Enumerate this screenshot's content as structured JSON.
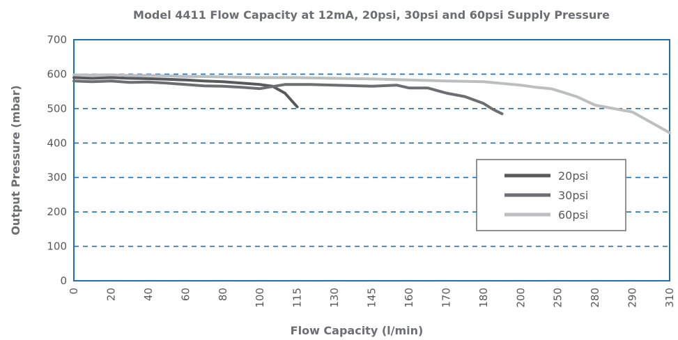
{
  "chart_data": {
    "type": "line",
    "title": "Model 4411 Flow Capacity at 12mA, 20psi, 30psi and 60psi Supply Pressure",
    "xlabel": "Flow Capacity (l/min)",
    "ylabel": "Output Pressure (mbar)",
    "ylim": [
      0,
      700
    ],
    "yticks": [
      "0",
      "100",
      "200",
      "300",
      "400",
      "500",
      "600",
      "700"
    ],
    "xticks": [
      "0",
      "20",
      "40",
      "60",
      "80",
      "100",
      "115",
      "130",
      "145",
      "160",
      "170",
      "180",
      "200",
      "250",
      "280",
      "290",
      "310"
    ],
    "grid": "horizontal dashed",
    "legend_position": "right",
    "series": [
      {
        "name": "20psi",
        "color": "#58595b",
        "points": [
          [
            0,
            590
          ],
          [
            10,
            588
          ],
          [
            20,
            590
          ],
          [
            30,
            588
          ],
          [
            40,
            587
          ],
          [
            50,
            585
          ],
          [
            60,
            583
          ],
          [
            70,
            580
          ],
          [
            80,
            578
          ],
          [
            90,
            574
          ],
          [
            100,
            570
          ],
          [
            105,
            565
          ],
          [
            110,
            545
          ],
          [
            115,
            505
          ]
        ]
      },
      {
        "name": "30psi",
        "color": "#6d6e71",
        "points": [
          [
            0,
            580
          ],
          [
            10,
            578
          ],
          [
            20,
            580
          ],
          [
            30,
            576
          ],
          [
            40,
            577
          ],
          [
            50,
            574
          ],
          [
            60,
            570
          ],
          [
            70,
            566
          ],
          [
            80,
            565
          ],
          [
            90,
            562
          ],
          [
            100,
            558
          ],
          [
            110,
            570
          ],
          [
            120,
            570
          ],
          [
            130,
            568
          ],
          [
            145,
            565
          ],
          [
            155,
            568
          ],
          [
            160,
            560
          ],
          [
            165,
            560
          ],
          [
            170,
            545
          ],
          [
            175,
            535
          ],
          [
            180,
            515
          ],
          [
            185,
            498
          ],
          [
            190,
            485
          ]
        ]
      },
      {
        "name": "60psi",
        "color": "#bcbec0",
        "points": [
          [
            0,
            598
          ],
          [
            10,
            597
          ],
          [
            20,
            598
          ],
          [
            30,
            596
          ],
          [
            40,
            596
          ],
          [
            50,
            595
          ],
          [
            60,
            593
          ],
          [
            70,
            593
          ],
          [
            80,
            592
          ],
          [
            100,
            590
          ],
          [
            115,
            590
          ],
          [
            130,
            588
          ],
          [
            145,
            586
          ],
          [
            160,
            583
          ],
          [
            170,
            580
          ],
          [
            180,
            578
          ],
          [
            200,
            568
          ],
          [
            220,
            562
          ],
          [
            240,
            558
          ],
          [
            250,
            552
          ],
          [
            265,
            535
          ],
          [
            280,
            510
          ],
          [
            290,
            490
          ],
          [
            300,
            460
          ],
          [
            310,
            430
          ]
        ]
      }
    ]
  }
}
